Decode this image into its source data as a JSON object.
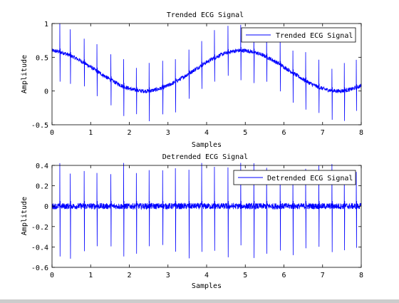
{
  "chart_data": [
    {
      "type": "line",
      "title": "Trended ECG Signal",
      "xlabel": "Samples",
      "ylabel": "Amplitude",
      "xlim": [
        0,
        8
      ],
      "ylim": [
        -0.5,
        1
      ],
      "xticks": [
        "0",
        "1",
        "2",
        "3",
        "4",
        "5",
        "6",
        "7",
        "8"
      ],
      "yticks": [
        "-0.5",
        "0",
        "0.5",
        "1"
      ],
      "legend_position": "top-right",
      "grid": false,
      "color": "#0000ff",
      "series": [
        {
          "name": "Trended ECG Signal",
          "baseline": "0.3 + 0.3*cos(2*pi*(x-4.9)/5.0)",
          "beats_at": [
            0.2,
            0.47,
            0.83,
            1.16,
            1.52,
            1.85,
            2.18,
            2.51,
            2.86,
            3.19,
            3.54,
            3.87,
            4.2,
            4.55,
            4.88,
            5.22,
            5.55,
            5.9,
            6.23,
            6.56,
            6.9,
            7.24,
            7.56,
            7.87
          ],
          "r_peak_above_baseline": 0.38,
          "s_trough_below_baseline": 0.42
        }
      ]
    },
    {
      "type": "line",
      "title": "Detrended ECG Signal",
      "xlabel": "Samples",
      "ylabel": "Amplitude",
      "xlim": [
        0,
        8
      ],
      "ylim": [
        -0.6,
        0.4
      ],
      "xticks": [
        "0",
        "1",
        "2",
        "3",
        "4",
        "5",
        "6",
        "7",
        "8"
      ],
      "yticks": [
        "-0.6",
        "-0.4",
        "-0.2",
        "0",
        "0.2",
        "0.4"
      ],
      "legend_position": "top-right",
      "grid": false,
      "color": "#0000ff",
      "series": [
        {
          "name": "Detrended ECG Signal",
          "baseline": "0",
          "beats_at": [
            0.2,
            0.47,
            0.83,
            1.16,
            1.52,
            1.85,
            2.18,
            2.51,
            2.86,
            3.19,
            3.54,
            3.87,
            4.2,
            4.55,
            4.88,
            5.22,
            5.55,
            5.9,
            6.23,
            6.56,
            6.9,
            7.24,
            7.56,
            7.87
          ],
          "r_peak_above_baseline": 0.37,
          "s_trough_below_baseline": 0.47
        }
      ]
    }
  ]
}
